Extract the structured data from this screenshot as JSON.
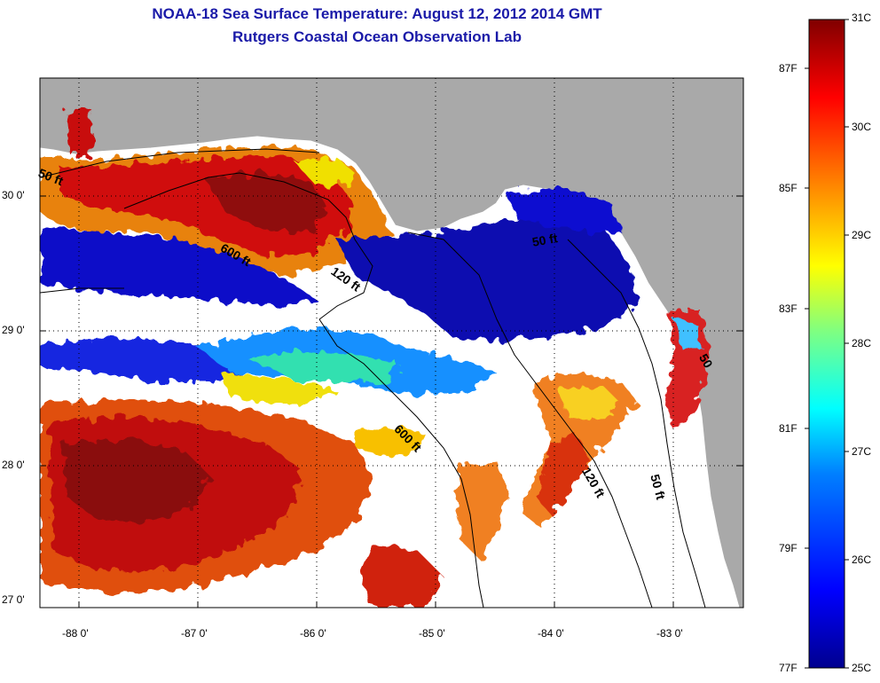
{
  "header": {
    "title_line1": "NOAA-18 Sea Surface Temperature:  August 12, 2012 2014 GMT",
    "title_line2": "Rutgers Coastal Ocean Observation Lab"
  },
  "map": {
    "lat_labels": [
      "30 0'",
      "29 0'",
      "28 0'",
      "27 0'"
    ],
    "lon_labels": [
      "-88 0'",
      "-87 0'",
      "-86 0'",
      "-85 0'",
      "-84 0'",
      "-83 0'"
    ],
    "contour_labels": [
      "50 ft",
      "600 ft",
      "120 ft",
      "50 ft",
      "600 ft",
      "120 ft",
      "50 ft",
      "50"
    ],
    "colors": {
      "land": "#a9a9a9",
      "cloud": "#ffffff",
      "border": "#000000"
    }
  },
  "colorbar": {
    "celsius_labels": [
      "31C",
      "30C",
      "29C",
      "28C",
      "27C",
      "26C",
      "25C"
    ],
    "fahrenheit_labels": [
      "87F",
      "85F",
      "83F",
      "81F",
      "79F",
      "77F"
    ],
    "range_c": [
      25,
      31
    ],
    "colors": [
      "#00008f",
      "#0000ff",
      "#0080ff",
      "#00ffff",
      "#80ff80",
      "#ffff00",
      "#ff8000",
      "#ff0000",
      "#800000"
    ]
  }
}
